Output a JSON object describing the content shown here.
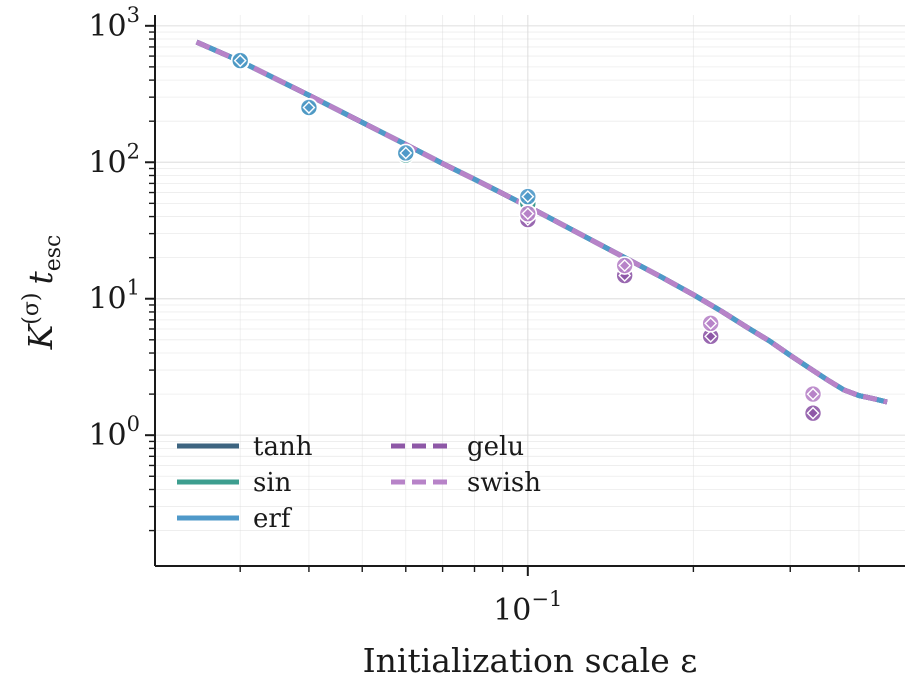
{
  "chart_data": {
    "type": "line",
    "title": "",
    "xlabel": "Initialization scale ε",
    "ylabel": "K(σ) t_esc",
    "ylabel_main": "K",
    "ylabel_sup": "(σ)",
    "ylabel_t": "t",
    "ylabel_sub": "esc",
    "x_scale": "log",
    "y_scale": "log",
    "xlim": [
      0.021,
      0.485
    ],
    "ylim": [
      0.11,
      1200
    ],
    "grid": true,
    "legend_position": "lower-left",
    "x_major_ticks": [
      {
        "value": 0.1,
        "base": "10",
        "exp": "−1"
      }
    ],
    "y_major_ticks": [
      {
        "value": 1,
        "base": "10",
        "exp": "0"
      },
      {
        "value": 10,
        "base": "10",
        "exp": "1"
      },
      {
        "value": 100,
        "base": "10",
        "exp": "2"
      },
      {
        "value": 1000,
        "base": "10",
        "exp": "3"
      }
    ],
    "theory_curve": {
      "x": [
        0.025,
        0.03,
        0.04,
        0.05,
        0.06,
        0.07,
        0.08,
        0.09,
        0.1,
        0.125,
        0.15,
        0.175,
        0.2,
        0.225,
        0.25,
        0.275,
        0.3,
        0.325,
        0.35,
        0.375,
        0.4,
        0.425,
        0.45
      ],
      "y": [
        760,
        550,
        310,
        196,
        135,
        98,
        75,
        59,
        47.5,
        29.5,
        20,
        14.4,
        10.7,
        8.1,
        6.2,
        4.9,
        3.85,
        3.1,
        2.55,
        2.15,
        1.95,
        1.85,
        1.75
      ]
    },
    "series": [
      {
        "name": "tanh",
        "color": "#3d6480",
        "dash": "solid",
        "points": [
          [
            0.03,
            560
          ],
          [
            0.04,
            253
          ],
          [
            0.06,
            116
          ],
          [
            0.1,
            49
          ]
        ]
      },
      {
        "name": "sin",
        "color": "#3d9e8f",
        "dash": "solid",
        "points": [
          [
            0.03,
            548
          ],
          [
            0.04,
            247
          ],
          [
            0.06,
            113
          ],
          [
            0.1,
            50
          ]
        ]
      },
      {
        "name": "erf",
        "color": "#4f99c9",
        "dash": "solid",
        "points": [
          [
            0.03,
            556
          ],
          [
            0.04,
            252
          ],
          [
            0.06,
            117
          ],
          [
            0.1,
            56
          ]
        ]
      },
      {
        "name": "gelu",
        "color": "#8e58a7",
        "dash": "dashed",
        "points": [
          [
            0.1,
            38
          ],
          [
            0.15,
            14.8
          ],
          [
            0.215,
            5.3
          ],
          [
            0.33,
            1.45
          ]
        ]
      },
      {
        "name": "swish",
        "color": "#b783c8",
        "dash": "dashed",
        "points": [
          [
            0.1,
            42
          ],
          [
            0.15,
            17.5
          ],
          [
            0.215,
            6.6
          ],
          [
            0.33,
            2.0
          ]
        ]
      }
    ]
  }
}
